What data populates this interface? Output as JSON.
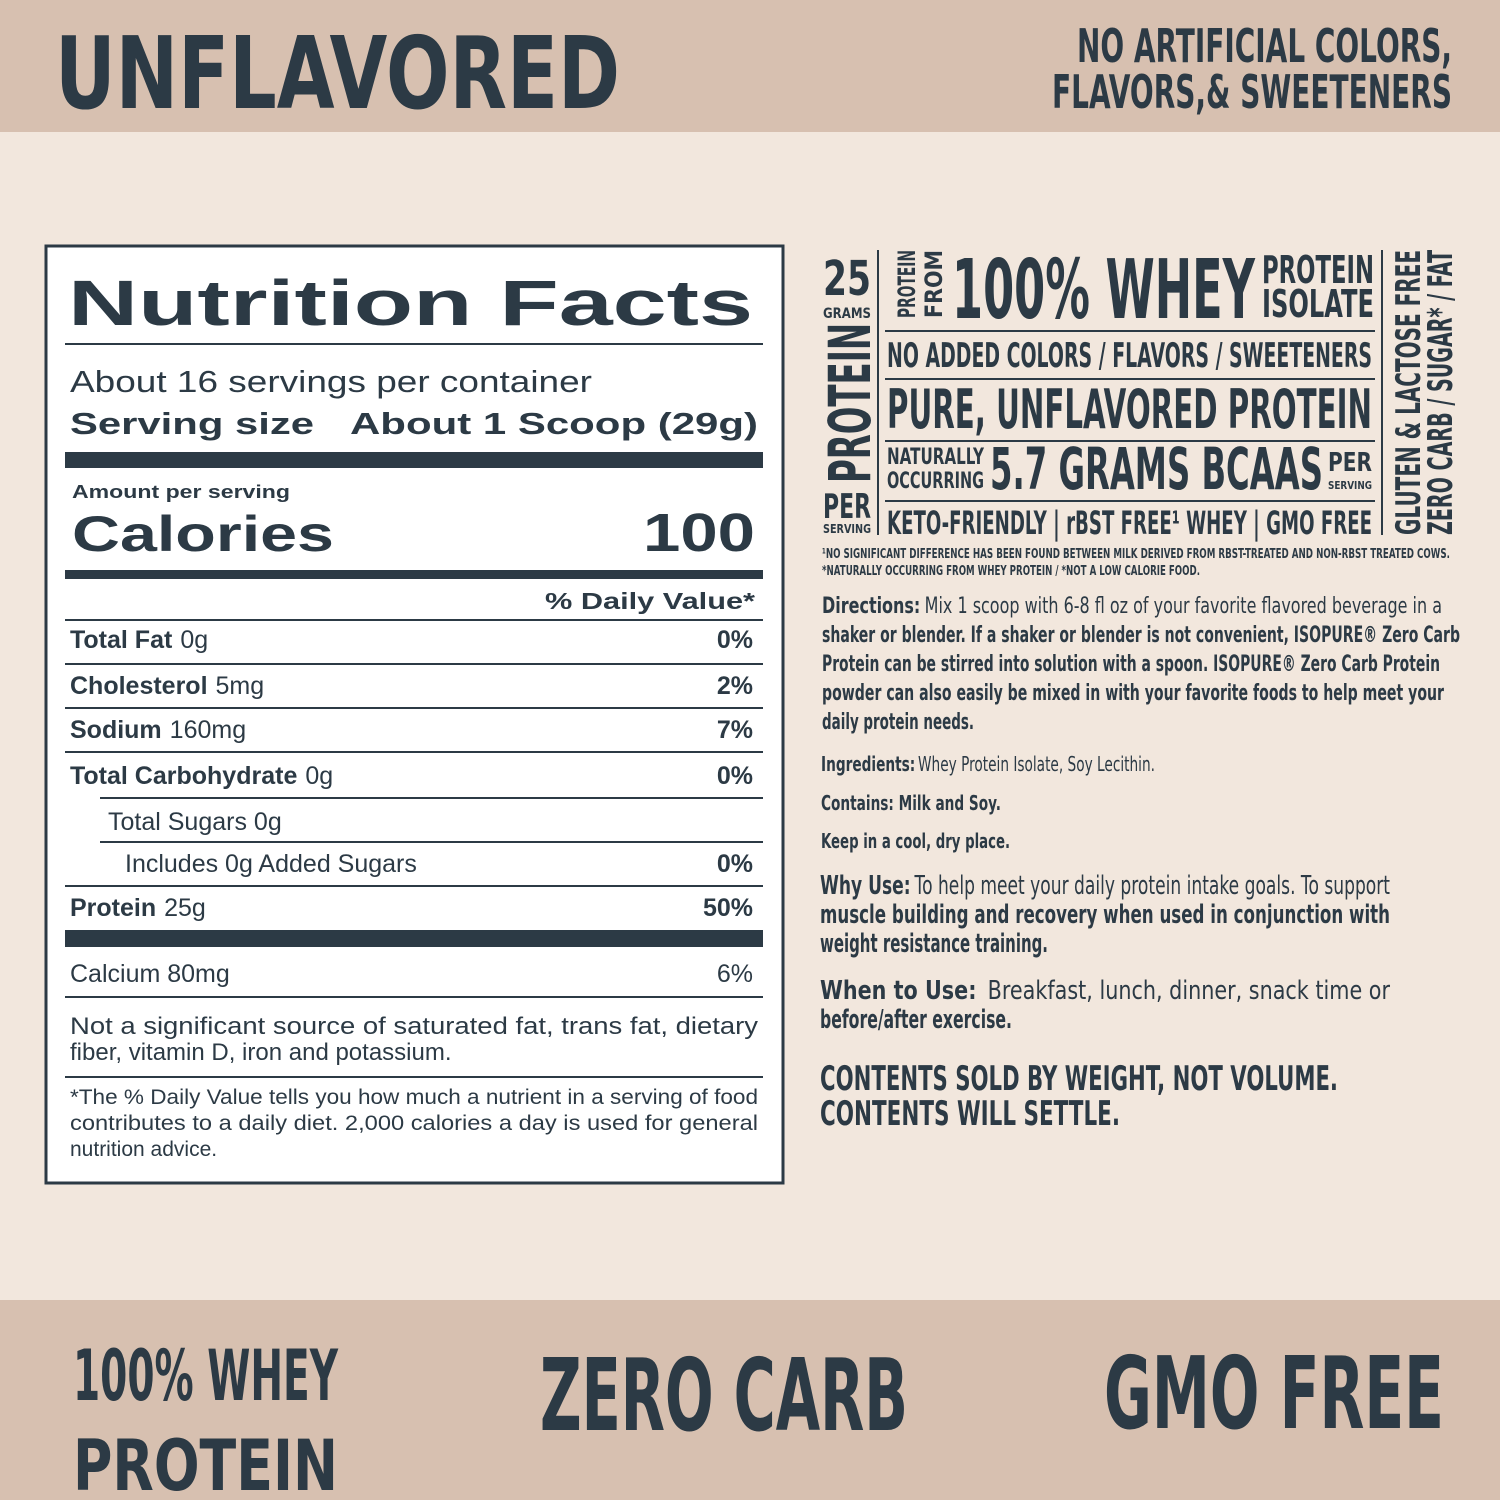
{
  "header": {
    "title": "UNFLAVORED",
    "claim": [
      "NO ARTIFICIAL COLORS,",
      "FLAVORS,& SWEETENERS"
    ]
  },
  "nutrition_facts": {
    "title": "Nutrition Facts",
    "servings_per_container": "About 16 servings per container",
    "serving_size_label": "Serving size",
    "serving_size": "About 1 Scoop (29g)",
    "amount_per_serving": "Amount per serving",
    "calories_label": "Calories",
    "calories": 100,
    "daily_value_header": "% Daily Value*",
    "rows": [
      {
        "name": "Total Fat",
        "amount": "0g",
        "dv": "0%"
      },
      {
        "name": "Cholesterol",
        "amount": "5mg",
        "dv": "2%"
      },
      {
        "name": "Sodium",
        "amount": "160mg",
        "dv": "7%"
      },
      {
        "name": "Total Carbohydrate",
        "amount": "0g",
        "dv": "0%"
      },
      {
        "text": "Total Sugars 0g"
      },
      {
        "text": "Includes 0g Added Sugars",
        "dv": "0%"
      },
      {
        "name": "Protein",
        "amount": "25g",
        "dv": "50%"
      }
    ],
    "calcium": {
      "text": "Calcium 80mg",
      "dv": "6%"
    },
    "note": [
      "Not a significant source of saturated fat, trans fat, dietary",
      "fiber, vitamin D, iron and potassium."
    ],
    "footnote": [
      "*The % Daily Value tells you how much a nutrient in a serving of food",
      "contributes to a daily diet. 2,000 calories a day is used for general",
      "nutrition advice."
    ]
  },
  "badge": {
    "protein_grams": "25",
    "grams": "GRAMS",
    "protein": "PROTEIN",
    "per": "PER",
    "serving": "SERVING",
    "protein_from": [
      "PROTEIN",
      "FROM"
    ],
    "whey": "100% WHEY",
    "isolate": [
      "PROTEIN",
      "ISOLATE"
    ],
    "no_added": "NO ADDED COLORS / FLAVORS / SWEETENERS",
    "pure": "PURE, UNFLAVORED PROTEIN",
    "naturally": [
      "NATURALLY",
      "OCCURRING"
    ],
    "bcaas": "5.7 GRAMS BCAAS",
    "bcaas_per": "PER",
    "bcaas_serving": "SERVING",
    "keto": "KETO-FRIENDLY | rBST FREE¹ WHEY | GMO FREE",
    "side": [
      "GLUTEN & LACTOSE FREE",
      "ZERO CARB / SUGAR* / FAT"
    ],
    "footnotes": [
      "¹NO SIGNIFICANT DIFFERENCE HAS BEEN FOUND BETWEEN MILK DERIVED FROM RBST-TREATED AND NON-RBST TREATED COWS.",
      "*NATURALLY OCCURRING FROM WHEY PROTEIN / *NOT A LOW CALORIE FOOD."
    ]
  },
  "directions": {
    "label": "Directions:",
    "lines": [
      "Mix 1 scoop with 6-8 fl oz of your favorite flavored beverage in a",
      "shaker or blender. If a shaker or blender is not convenient, ISOPURE® Zero Carb",
      "Protein can be stirred into solution with a spoon. ISOPURE® Zero Carb Protein",
      "powder can also easily be mixed in with your favorite foods to help meet your",
      "daily protein needs."
    ]
  },
  "ingredients": {
    "label": "Ingredients:",
    "text": "Whey Protein Isolate, Soy Lecithin."
  },
  "contains": "Contains: Milk and Soy.",
  "storage": "Keep in a cool, dry place.",
  "why_use": {
    "label": "Why Use:",
    "lines": [
      "To help meet your daily protein intake goals. To support",
      "muscle building and recovery when used in conjunction with",
      "weight resistance training."
    ]
  },
  "when_to_use": {
    "label": "When to Use:",
    "lines": [
      "Breakfast, lunch, dinner, snack time or",
      "before/after exercise."
    ]
  },
  "contents_note": [
    "CONTENTS SOLD BY WEIGHT, NOT VOLUME.",
    "CONTENTS WILL SETTLE."
  ],
  "footer": {
    "whey": [
      "100% WHEY",
      "PROTEIN"
    ],
    "zero_carb": "ZERO CARB",
    "gmo_free": "GMO FREE"
  }
}
